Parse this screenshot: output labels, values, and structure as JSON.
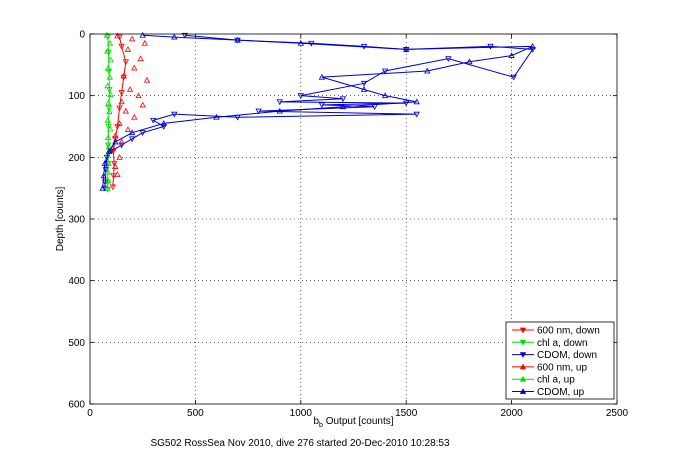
{
  "chart_data": {
    "type": "scatter",
    "xlabel_main": "b",
    "xlabel_sub": "b",
    "xlabel_rest": " Output [counts]",
    "ylabel": "Depth [counts]",
    "caption": "SG502 RossSea Nov 2010, dive 276 started 20-Dec-2010 10:28:53",
    "xlim": [
      0,
      2500
    ],
    "ylim": [
      0,
      600
    ],
    "y_reversed": true,
    "grid": "dotted",
    "legend_position": "bottom-right",
    "xticks": [
      "0",
      "500",
      "1000",
      "1500",
      "2000",
      "2500"
    ],
    "yticks": [
      "0",
      "100",
      "200",
      "300",
      "400",
      "500",
      "600"
    ],
    "series": [
      {
        "name": "600 nm, down",
        "color": "#ff0000",
        "marker": "triangle-down",
        "line": true,
        "points": [
          [
            140,
            5
          ],
          [
            150,
            20
          ],
          [
            170,
            45
          ],
          [
            160,
            70
          ],
          [
            150,
            95
          ],
          [
            140,
            120
          ],
          [
            130,
            150
          ],
          [
            120,
            170
          ],
          [
            110,
            190
          ],
          [
            115,
            210
          ],
          [
            112,
            230
          ],
          [
            108,
            248
          ]
        ]
      },
      {
        "name": "chl a, down",
        "color": "#00dd00",
        "marker": "triangle-down",
        "line": true,
        "points": [
          [
            85,
            5
          ],
          [
            88,
            30
          ],
          [
            90,
            60
          ],
          [
            92,
            90
          ],
          [
            90,
            120
          ],
          [
            88,
            150
          ],
          [
            86,
            180
          ],
          [
            85,
            210
          ],
          [
            84,
            240
          ],
          [
            84,
            252
          ]
        ]
      },
      {
        "name": "CDOM, down",
        "color": "#0000cc",
        "marker": "triangle-down",
        "line": true,
        "points": [
          [
            450,
            2
          ],
          [
            700,
            10
          ],
          [
            1050,
            15
          ],
          [
            1300,
            20
          ],
          [
            1500,
            25
          ],
          [
            1900,
            20
          ],
          [
            2100,
            25
          ],
          [
            2010,
            70
          ],
          [
            1700,
            40
          ],
          [
            1400,
            60
          ],
          [
            1300,
            80
          ],
          [
            1000,
            100
          ],
          [
            1200,
            105
          ],
          [
            900,
            110
          ],
          [
            1500,
            112
          ],
          [
            1100,
            115
          ],
          [
            1350,
            118
          ],
          [
            800,
            125
          ],
          [
            1550,
            130
          ],
          [
            700,
            135
          ],
          [
            400,
            130
          ],
          [
            300,
            140
          ],
          [
            350,
            150
          ],
          [
            250,
            160
          ],
          [
            200,
            170
          ],
          [
            150,
            180
          ],
          [
            100,
            190
          ],
          [
            80,
            200
          ],
          [
            75,
            220
          ],
          [
            72,
            240
          ],
          [
            70,
            250
          ]
        ]
      },
      {
        "name": "600 nm, up",
        "color": "#ff0000",
        "marker": "triangle-up",
        "line": false,
        "points": [
          [
            130,
            3
          ],
          [
            200,
            8
          ],
          [
            260,
            15
          ],
          [
            180,
            25
          ],
          [
            240,
            40
          ],
          [
            210,
            55
          ],
          [
            160,
            68
          ],
          [
            270,
            75
          ],
          [
            190,
            90
          ],
          [
            230,
            100
          ],
          [
            150,
            110
          ],
          [
            250,
            115
          ],
          [
            170,
            125
          ],
          [
            210,
            135
          ],
          [
            140,
            145
          ],
          [
            180,
            155
          ],
          [
            120,
            165
          ],
          [
            150,
            175
          ],
          [
            110,
            185
          ],
          [
            140,
            200
          ],
          [
            120,
            215
          ],
          [
            130,
            228
          ]
        ]
      },
      {
        "name": "chl a, up",
        "color": "#00dd00",
        "marker": "triangle-up",
        "line": false,
        "points": [
          [
            80,
            2
          ],
          [
            95,
            15
          ],
          [
            82,
            28
          ],
          [
            98,
            42
          ],
          [
            86,
            56
          ],
          [
            94,
            70
          ],
          [
            83,
            84
          ],
          [
            97,
            98
          ],
          [
            87,
            112
          ],
          [
            92,
            126
          ],
          [
            84,
            140
          ],
          [
            96,
            154
          ],
          [
            86,
            168
          ],
          [
            90,
            182
          ],
          [
            82,
            196
          ],
          [
            88,
            210
          ],
          [
            84,
            224
          ],
          [
            86,
            238
          ],
          [
            83,
            250
          ]
        ]
      },
      {
        "name": "CDOM, up",
        "color": "#0000cc",
        "marker": "triangle-up",
        "line": true,
        "points": [
          [
            60,
            250
          ],
          [
            65,
            230
          ],
          [
            70,
            210
          ],
          [
            90,
            190
          ],
          [
            120,
            175
          ],
          [
            200,
            160
          ],
          [
            350,
            145
          ],
          [
            600,
            135
          ],
          [
            900,
            125
          ],
          [
            1200,
            118
          ],
          [
            1550,
            110
          ],
          [
            1400,
            100
          ],
          [
            1300,
            90
          ],
          [
            1100,
            70
          ],
          [
            1600,
            60
          ],
          [
            1800,
            45
          ],
          [
            2000,
            35
          ],
          [
            2100,
            20
          ],
          [
            1500,
            25
          ],
          [
            1000,
            15
          ],
          [
            700,
            10
          ],
          [
            400,
            5
          ],
          [
            250,
            2
          ]
        ]
      }
    ]
  }
}
